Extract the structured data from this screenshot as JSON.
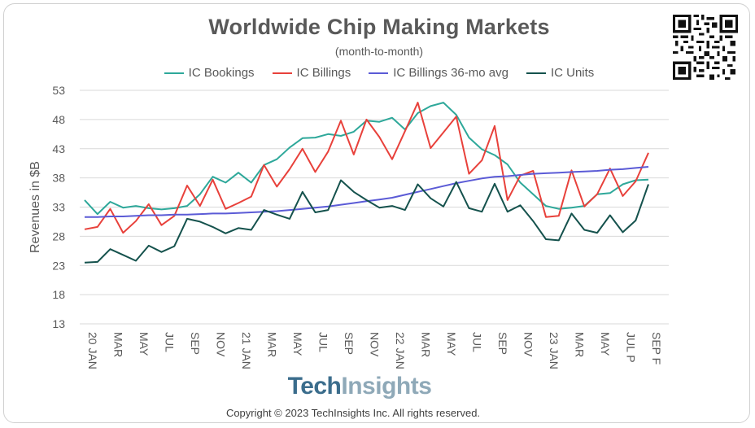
{
  "chart_data": {
    "type": "line",
    "title": "Worldwide Chip Making Markets",
    "subtitle": "(month-to-month)",
    "ylabel": "Revenues in $B",
    "xlabel": "",
    "ylim": [
      13,
      53
    ],
    "yticks": [
      53,
      48,
      43,
      38,
      33,
      28,
      23,
      18,
      13
    ],
    "grid": "horizontal",
    "legend_position": "top",
    "x_tick_labels": [
      "20 JAN",
      "MAR",
      "MAY",
      "JUL",
      "SEP",
      "NOV",
      "21 JAN",
      "MAR",
      "MAY",
      "JUL",
      "SEP",
      "NOV",
      "22 JAN",
      "MAR",
      "MAY",
      "JUL",
      "SEP",
      "NOV",
      "23 JAN",
      "MAR",
      "MAY",
      "JUL P",
      "SEP F"
    ],
    "x_count": 45,
    "series": [
      {
        "name": "IC Bookings",
        "color": "#2ea89a",
        "values": [
          34.2,
          31.8,
          33.9,
          32.9,
          33.2,
          32.8,
          32.6,
          32.8,
          33.2,
          35.2,
          38.2,
          37.2,
          38.9,
          37.2,
          40.2,
          41.2,
          43.2,
          44.8,
          44.9,
          45.5,
          45.2,
          45.9,
          47.8,
          47.6,
          48.3,
          46.3,
          49.1,
          50.3,
          50.9,
          48.8,
          44.9,
          42.9,
          41.9,
          40.3,
          37.2,
          35.2,
          33.2,
          32.7,
          32.9,
          33.2,
          35.2,
          35.4,
          36.9,
          37.6,
          37.7
        ]
      },
      {
        "name": "IC Billings",
        "color": "#e8413b",
        "values": [
          29.2,
          29.6,
          32.7,
          28.6,
          30.6,
          33.5,
          29.9,
          31.5,
          36.7,
          33.2,
          37.7,
          32.7,
          33.7,
          34.8,
          40.2,
          36.5,
          39.5,
          43.0,
          39.0,
          42.5,
          47.8,
          42.0,
          48.0,
          45.0,
          41.2,
          46.0,
          50.9,
          43.1,
          45.8,
          48.5,
          38.7,
          41.0,
          46.9,
          34.2,
          38.4,
          39.2,
          31.3,
          31.5,
          39.3,
          33.1,
          35.2,
          39.6,
          34.9,
          37.4,
          42.3
        ]
      },
      {
        "name": "IC Billings 36-mo avg",
        "color": "#5b5bd6",
        "values": [
          31.3,
          31.3,
          31.4,
          31.4,
          31.5,
          31.6,
          31.6,
          31.7,
          31.7,
          31.8,
          31.9,
          31.9,
          32.0,
          32.1,
          32.2,
          32.3,
          32.5,
          32.7,
          32.9,
          33.1,
          33.4,
          33.7,
          34.0,
          34.3,
          34.6,
          35.1,
          35.6,
          36.1,
          36.6,
          37.1,
          37.5,
          37.9,
          38.2,
          38.3,
          38.5,
          38.7,
          38.8,
          38.9,
          39.0,
          39.1,
          39.2,
          39.4,
          39.5,
          39.7,
          39.9
        ]
      },
      {
        "name": "IC Units",
        "color": "#15524d",
        "values": [
          23.5,
          23.6,
          25.8,
          24.8,
          23.8,
          26.4,
          25.3,
          26.3,
          31.0,
          30.5,
          29.6,
          28.5,
          29.4,
          29.1,
          32.5,
          31.7,
          31.0,
          35.6,
          32.1,
          32.5,
          37.6,
          35.6,
          34.2,
          32.9,
          33.2,
          32.5,
          36.9,
          34.5,
          33.1,
          37.3,
          32.8,
          32.2,
          37.0,
          32.2,
          33.3,
          30.6,
          27.5,
          27.3,
          31.9,
          29.1,
          28.6,
          31.6,
          28.7,
          30.7,
          36.9
        ]
      }
    ]
  },
  "brand": {
    "part1": "Tech",
    "part2": "Insights"
  },
  "copyright": "Copyright © 2023 TechInsights Inc.  All rights reserved."
}
